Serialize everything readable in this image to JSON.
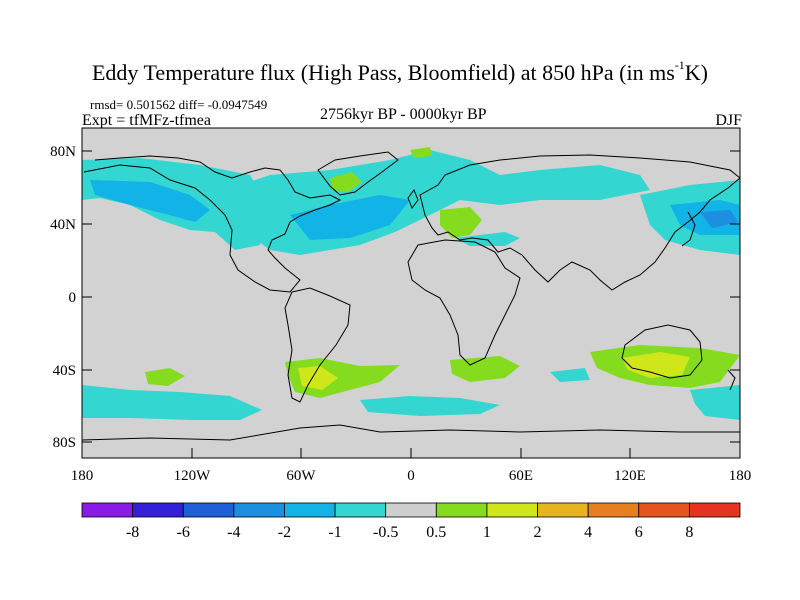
{
  "header": {
    "title_main": "Eddy Temperature flux (High Pass, Bloomfield) at 850 hPa (in ms",
    "title_sup": "-1",
    "title_end": "K)",
    "stats": "rmsd= 0.501562 diff= -0.0947549",
    "expt": "Expt = tfMFz-tfmea",
    "period": "2756kyr BP - 0000kyr BP",
    "season": "DJF"
  },
  "axes": {
    "y_ticks": [
      "80N",
      "40N",
      "0",
      "40S",
      "80S"
    ],
    "x_ticks": [
      "180",
      "120W",
      "60W",
      "0",
      "60E",
      "120E",
      "180"
    ]
  },
  "colorbar": {
    "labels": [
      "-8",
      "-6",
      "-4",
      "-2",
      "-1",
      "-0.5",
      "0.5",
      "1",
      "2",
      "4",
      "6",
      "8"
    ],
    "colors": [
      "#8a1ae6",
      "#3320d8",
      "#1f5fd8",
      "#1c8fe0",
      "#12b3e6",
      "#33d6d0",
      "#cfcfcf",
      "#85dc1f",
      "#cfe61a",
      "#e6b41f",
      "#e6801f",
      "#e6531f",
      "#e6321f"
    ]
  },
  "colors": {
    "land_ocean": "#d2d2d2",
    "coast": "#000000"
  }
}
